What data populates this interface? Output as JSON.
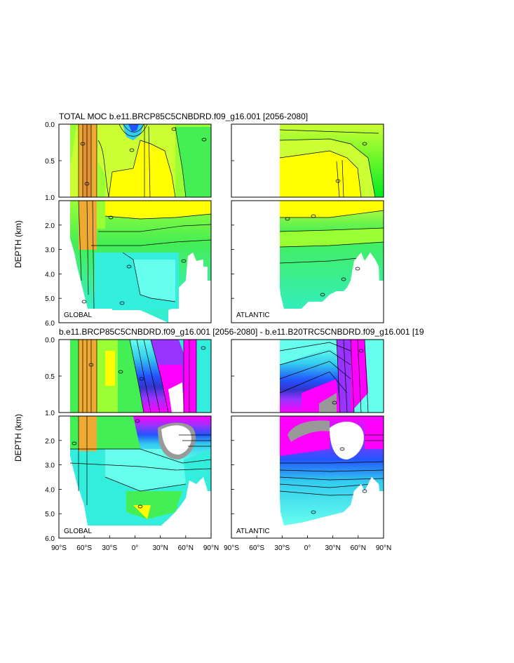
{
  "figure": {
    "top_title": "TOTAL MOC b.e11.BRCP85C5CNBDRD.f09_g16.001 [2056-2080]",
    "bottom_title": "b.e11.BRCP85C5CNBDRD.f09_g16.001 [2056-2080] - b.e11.B20TRC5CNBDRD.f09_g16.001 [19",
    "ylabel": "DEPTH (km)",
    "upper_yticks": [
      "0.0",
      "0.5",
      "1.0"
    ],
    "lower_yticks": [
      "2.0",
      "3.0",
      "4.0",
      "5.0",
      "6.0"
    ],
    "left_xticks": [
      "90°S",
      "60°S",
      "30°S",
      "0°",
      "30°N",
      "60°N",
      "90°N"
    ],
    "right_xticks": [
      "90°S",
      "60°S",
      "30°S",
      "0°",
      "30°N",
      "60°N",
      "90°N"
    ],
    "left_region": "GLOBAL",
    "right_region": "ATLANTIC",
    "contour_label": "0"
  },
  "colors": {
    "yellow": "#ffff00",
    "yellowgreen": "#ccff33",
    "lightgreen": "#99ff33",
    "green": "#00ee22",
    "midgreen": "#44ee55",
    "aquagreen": "#33ee99",
    "cyan": "#33eedd",
    "cyan2": "#66ffee",
    "orange": "#eeaa33",
    "blue": "#2255ff",
    "blue2": "#3333cc",
    "violet": "#9933ff",
    "magenta": "#ff00ff",
    "gray": "#999999"
  },
  "chart_data": [
    {
      "type": "heatmap",
      "title": "TOTAL MOC b.e11.BRCP85C5CNBDRD.f09_g16.001 [2056-2080]",
      "panel": "GLOBAL",
      "xlabel": "",
      "ylabel": "DEPTH (km)",
      "xlim": [
        -90,
        90
      ],
      "ylim_km": [
        0,
        6
      ],
      "x_ticks": [
        "90°S",
        "60°S",
        "30°S",
        "0°",
        "30°N",
        "60°N",
        "90°N"
      ],
      "description_fields": {
        "fill": "filled contours",
        "contour_labels": "0"
      }
    },
    {
      "type": "heatmap",
      "title": "TOTAL MOC b.e11.BRCP85C5CNBDRD.f09_g16.001 [2056-2080]",
      "panel": "ATLANTIC",
      "xlim": [
        -90,
        90
      ],
      "ylim_km": [
        0,
        6
      ],
      "data_starts_lat": -30
    },
    {
      "type": "heatmap",
      "title": "b.e11.BRCP85C5CNBDRD.f09_g16.001 [2056-2080] - b.e11.B20TRC5CNBDRD.f09_g16.001 [19",
      "panel": "GLOBAL",
      "xlim": [
        -90,
        90
      ],
      "ylim_km": [
        0,
        6
      ]
    },
    {
      "type": "heatmap",
      "title": "b.e11.BRCP85C5CNBDRD.f09_g16.001 [2056-2080] - b.e11.B20TRC5CNBDRD.f09_g16.001 [19",
      "panel": "ATLANTIC",
      "xlim": [
        -90,
        90
      ],
      "ylim_km": [
        0,
        6
      ],
      "data_starts_lat": -30
    }
  ]
}
